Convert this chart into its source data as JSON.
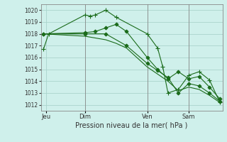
{
  "background_color": "#cff0eb",
  "grid_color": "#aad4cc",
  "line_color": "#1a6b1a",
  "title": "Pression niveau de la mer( hPa )",
  "ylim": [
    1011.5,
    1020.5
  ],
  "yticks": [
    1012,
    1013,
    1014,
    1015,
    1016,
    1017,
    1018,
    1019,
    1020
  ],
  "xtick_labels": [
    "Jeu",
    "Dim",
    "Ven",
    "Sam"
  ],
  "xtick_positions": [
    0.5,
    8,
    20,
    28
  ],
  "series": [
    {
      "x": [
        0,
        1,
        8,
        9,
        10,
        12,
        14,
        20,
        22,
        23,
        24,
        26,
        28,
        30,
        32,
        34
      ],
      "y": [
        1016.7,
        1018.0,
        1019.6,
        1019.5,
        1019.6,
        1020.0,
        1019.4,
        1018.0,
        1016.8,
        1015.2,
        1013.0,
        1013.3,
        1014.5,
        1014.8,
        1014.1,
        1012.2
      ],
      "marker": "+",
      "markersize": 4
    },
    {
      "x": [
        0,
        8,
        10,
        12,
        14,
        16,
        20,
        22,
        24,
        26,
        28,
        30,
        32,
        34
      ],
      "y": [
        1018.0,
        1018.1,
        1018.2,
        1018.5,
        1018.8,
        1018.2,
        1016.0,
        1015.0,
        1014.2,
        1014.8,
        1014.2,
        1014.4,
        1013.5,
        1012.5
      ],
      "marker": "D",
      "markersize": 2.5
    },
    {
      "x": [
        0,
        8,
        12,
        16,
        20,
        22,
        24,
        26,
        28,
        30,
        32,
        34
      ],
      "y": [
        1018.0,
        1018.0,
        1018.0,
        1017.0,
        1015.5,
        1014.9,
        1014.3,
        1013.0,
        1013.8,
        1013.6,
        1013.0,
        1012.3
      ],
      "marker": "D",
      "markersize": 2.5
    },
    {
      "x": [
        0,
        8,
        12,
        14,
        16,
        20,
        22,
        24,
        26,
        28,
        30,
        32,
        34
      ],
      "y": [
        1018.0,
        1017.8,
        1017.5,
        1017.2,
        1016.8,
        1015.2,
        1014.6,
        1014.0,
        1013.2,
        1013.5,
        1013.3,
        1012.8,
        1012.2
      ],
      "marker": null,
      "markersize": 0
    }
  ],
  "vlines": [
    8,
    20,
    28
  ],
  "total_x": 34,
  "xlim": [
    -0.5,
    34.5
  ]
}
